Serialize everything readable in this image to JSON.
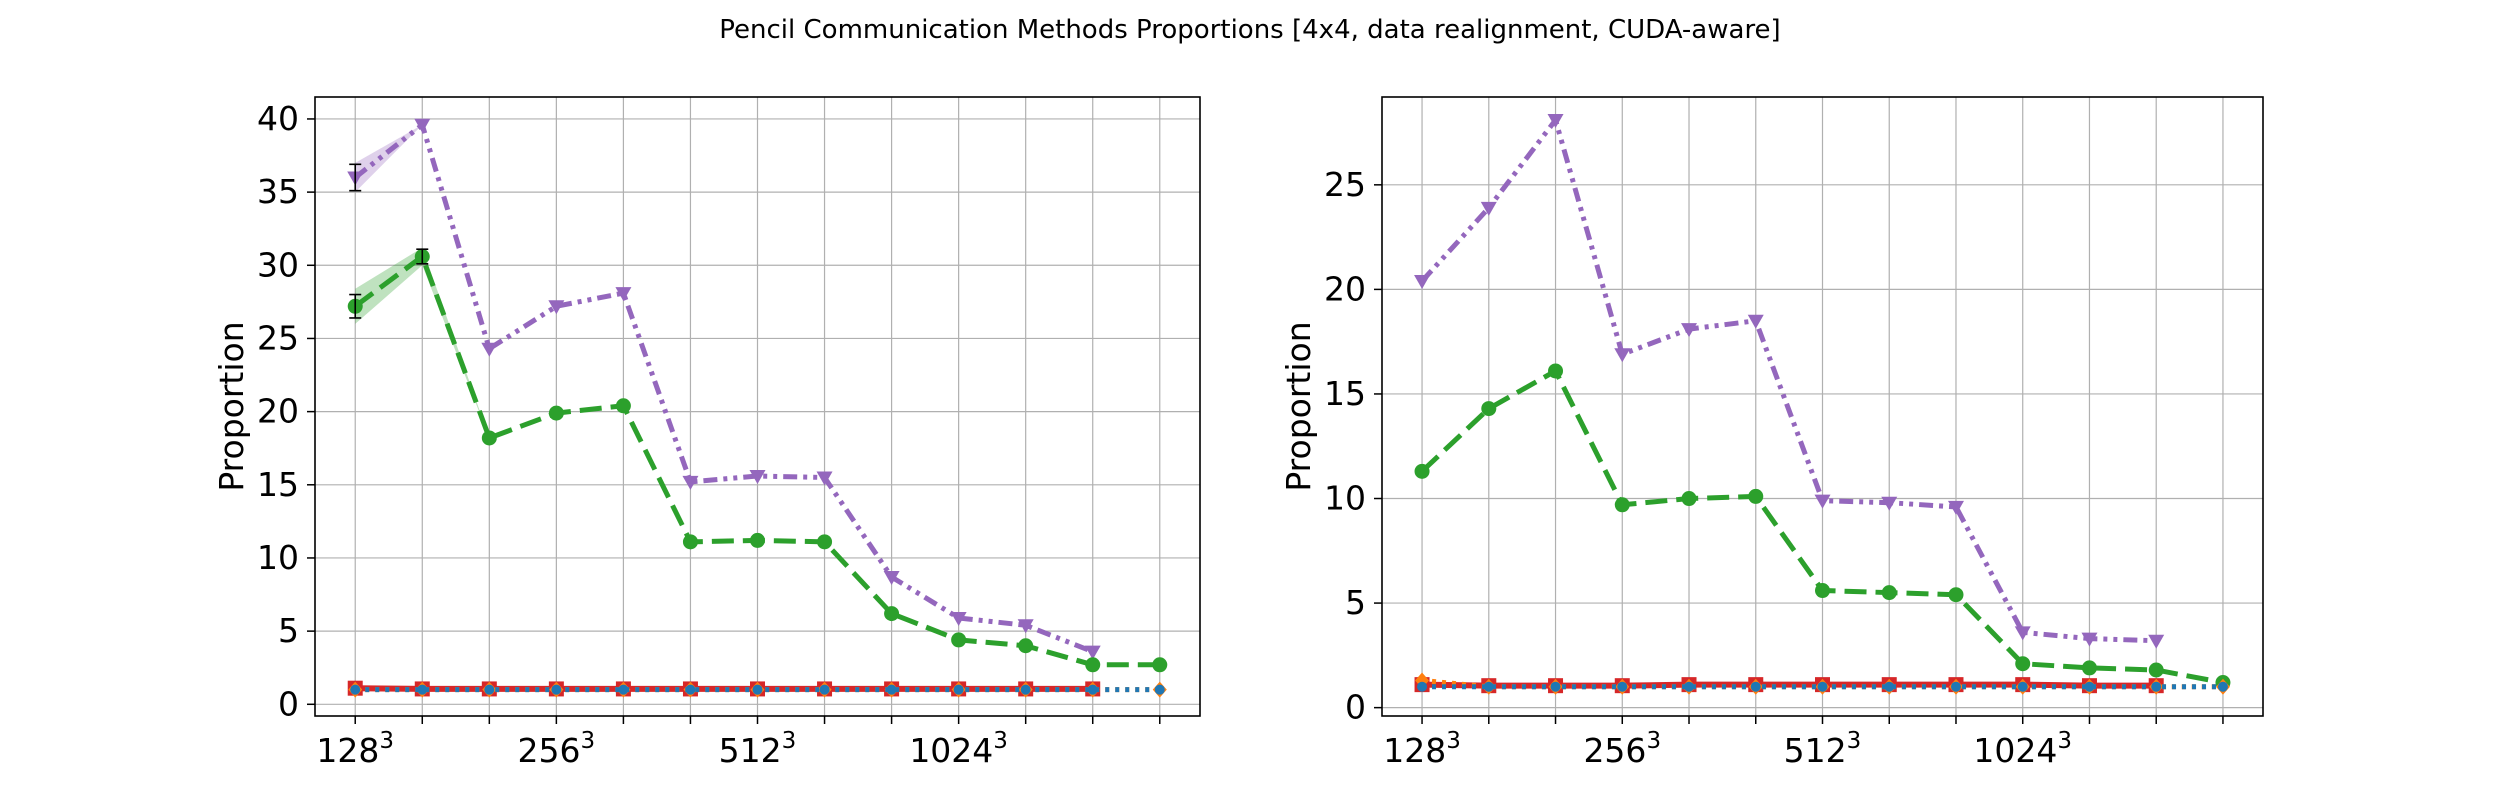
{
  "figure": {
    "title": "Pencil Communication Methods Proportions [4x4, data realignment, CUDA-aware]"
  },
  "colors": {
    "purple": "#9467bd",
    "green": "#2ca02c",
    "red": "#d62728",
    "orange": "#ff7f0e",
    "blue": "#1f77b4",
    "grid": "#b0b0b0"
  },
  "chart_data": [
    {
      "type": "line",
      "ylabel": "Proportion",
      "ylim": [
        -0.8,
        41.5
      ],
      "yticks": [
        0,
        5,
        10,
        15,
        20,
        25,
        30,
        35,
        40
      ],
      "grid": true,
      "x": [
        0,
        1,
        2,
        3,
        4,
        5,
        6,
        7,
        8,
        9,
        10,
        11,
        12
      ],
      "xtick_labels": [
        {
          "x": 0,
          "base": "128",
          "exp": "3"
        },
        {
          "x": 3,
          "base": "256",
          "exp": "3"
        },
        {
          "x": 6,
          "base": "512",
          "exp": "3"
        },
        {
          "x": 9,
          "base": "1024",
          "exp": "3"
        }
      ],
      "series": [
        {
          "color": "purple",
          "dash": "dashdot2",
          "marker": "tri-down",
          "values": [
            36.0,
            39.6,
            24.3,
            27.2,
            28.1,
            15.2,
            15.6,
            15.5,
            8.7,
            5.9,
            5.4,
            3.6,
            null
          ],
          "band": [
            1.0,
            0.0,
            0,
            0,
            0,
            0,
            0,
            0,
            0,
            0,
            0,
            0,
            0
          ],
          "errors": [
            0.9,
            0,
            0,
            0,
            0,
            0,
            0,
            0,
            0,
            0,
            0,
            0,
            0
          ]
        },
        {
          "color": "green",
          "dash": "dashed",
          "marker": "circle",
          "values": [
            27.2,
            30.6,
            18.2,
            19.9,
            20.4,
            11.1,
            11.2,
            11.1,
            6.2,
            4.4,
            4.0,
            2.7,
            2.7
          ],
          "band": [
            1.2,
            0.6,
            0,
            0,
            0,
            0,
            0,
            0,
            0,
            0,
            0,
            0,
            0
          ],
          "errors": [
            0.8,
            0.5,
            0,
            0,
            0,
            0,
            0,
            0,
            0,
            0,
            0,
            0,
            0
          ]
        },
        {
          "color": "red",
          "dash": "solid",
          "marker": "square",
          "values": [
            1.1,
            1.05,
            1.05,
            1.05,
            1.05,
            1.05,
            1.05,
            1.05,
            1.05,
            1.05,
            1.05,
            1.05,
            null
          ],
          "band": [],
          "errors": []
        },
        {
          "color": "orange",
          "dash": "dotted",
          "marker": "diamond",
          "values": [
            1.0,
            1.0,
            1.0,
            1.0,
            1.0,
            1.0,
            1.0,
            1.0,
            1.0,
            1.0,
            1.0,
            1.0,
            1.0
          ],
          "band": [],
          "errors": []
        },
        {
          "color": "blue",
          "dash": "dotted",
          "marker": "circle-small",
          "values": [
            1.0,
            1.0,
            1.0,
            1.0,
            1.0,
            1.0,
            1.0,
            1.0,
            1.0,
            1.0,
            1.0,
            1.0,
            1.0
          ],
          "band": [],
          "errors": []
        }
      ]
    },
    {
      "type": "line",
      "ylabel": "Proportion",
      "ylim": [
        -0.4,
        29.2
      ],
      "yticks": [
        0,
        5,
        10,
        15,
        20,
        25
      ],
      "grid": true,
      "x": [
        0,
        1,
        2,
        3,
        4,
        5,
        6,
        7,
        8,
        9,
        10,
        11,
        12
      ],
      "xtick_labels": [
        {
          "x": 0,
          "base": "128",
          "exp": "3"
        },
        {
          "x": 3,
          "base": "256",
          "exp": "3"
        },
        {
          "x": 6,
          "base": "512",
          "exp": "3"
        },
        {
          "x": 9,
          "base": "1024",
          "exp": "3"
        }
      ],
      "series": [
        {
          "color": "purple",
          "dash": "dashdot2",
          "marker": "tri-down",
          "values": [
            20.4,
            23.9,
            28.1,
            16.9,
            18.1,
            18.5,
            9.9,
            9.8,
            9.6,
            3.6,
            3.3,
            3.2,
            null
          ],
          "band": [],
          "errors": []
        },
        {
          "color": "green",
          "dash": "dashed",
          "marker": "circle",
          "values": [
            11.3,
            14.3,
            16.1,
            9.7,
            10.0,
            10.1,
            5.6,
            5.5,
            5.4,
            2.1,
            1.9,
            1.8,
            1.2
          ],
          "band": [],
          "errors": []
        },
        {
          "color": "red",
          "dash": "solid",
          "marker": "square",
          "values": [
            1.1,
            1.05,
            1.05,
            1.05,
            1.1,
            1.1,
            1.1,
            1.1,
            1.1,
            1.1,
            1.05,
            1.05,
            null
          ],
          "band": [],
          "errors": []
        },
        {
          "color": "orange",
          "dash": "dotted",
          "marker": "diamond",
          "values": [
            1.3,
            1.0,
            1.0,
            1.0,
            1.0,
            1.0,
            1.0,
            1.0,
            1.0,
            1.0,
            1.0,
            1.0,
            1.0
          ],
          "band": [],
          "errors": []
        },
        {
          "color": "blue",
          "dash": "dotted",
          "marker": "circle-small",
          "values": [
            1.0,
            1.0,
            1.0,
            1.0,
            1.0,
            1.0,
            1.0,
            1.0,
            1.0,
            1.0,
            1.0,
            1.0,
            1.0
          ],
          "band": [],
          "errors": []
        }
      ]
    }
  ]
}
